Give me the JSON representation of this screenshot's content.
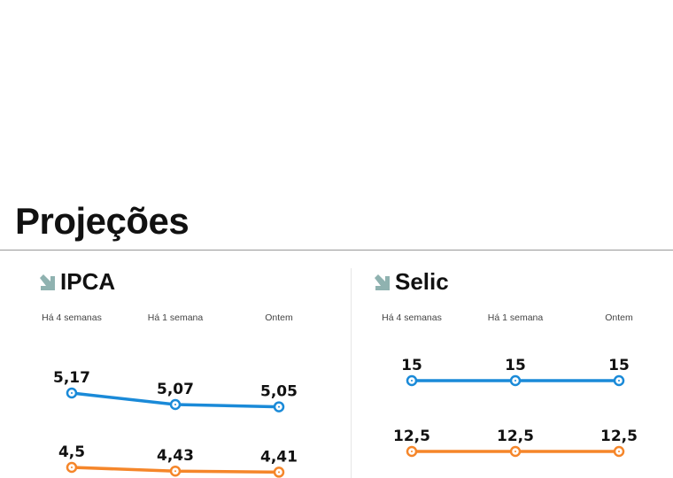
{
  "page_title": "Projeções",
  "colors": {
    "series_1": "#1a8ad8",
    "series_2": "#f5862a",
    "arrow": "#8fb2b0"
  },
  "chart_data": [
    {
      "type": "line",
      "title": "IPCA",
      "trend_icon": "arrow-down-right-icon",
      "categories": [
        "Há 4 semanas",
        "Há 1 semana",
        "Ontem"
      ],
      "series": [
        {
          "values": [
            5.17,
            5.07,
            5.05
          ],
          "labels": [
            "5,17",
            "5,07",
            "5,05"
          ],
          "color": "#1a8ad8"
        },
        {
          "values": [
            4.5,
            4.43,
            4.41
          ],
          "labels": [
            "4,5",
            "4,43",
            "4,41"
          ],
          "color": "#f5862a"
        }
      ]
    },
    {
      "type": "line",
      "title": "Selic",
      "trend_icon": "arrow-down-right-icon",
      "categories": [
        "Há 4 semanas",
        "Há 1 semana",
        "Ontem"
      ],
      "series": [
        {
          "values": [
            15,
            15,
            15
          ],
          "labels": [
            "15",
            "15",
            "15"
          ],
          "color": "#1a8ad8"
        },
        {
          "values": [
            12.5,
            12.5,
            12.5
          ],
          "labels": [
            "12,5",
            "12,5",
            "12,5"
          ],
          "color": "#f5862a"
        }
      ]
    }
  ]
}
